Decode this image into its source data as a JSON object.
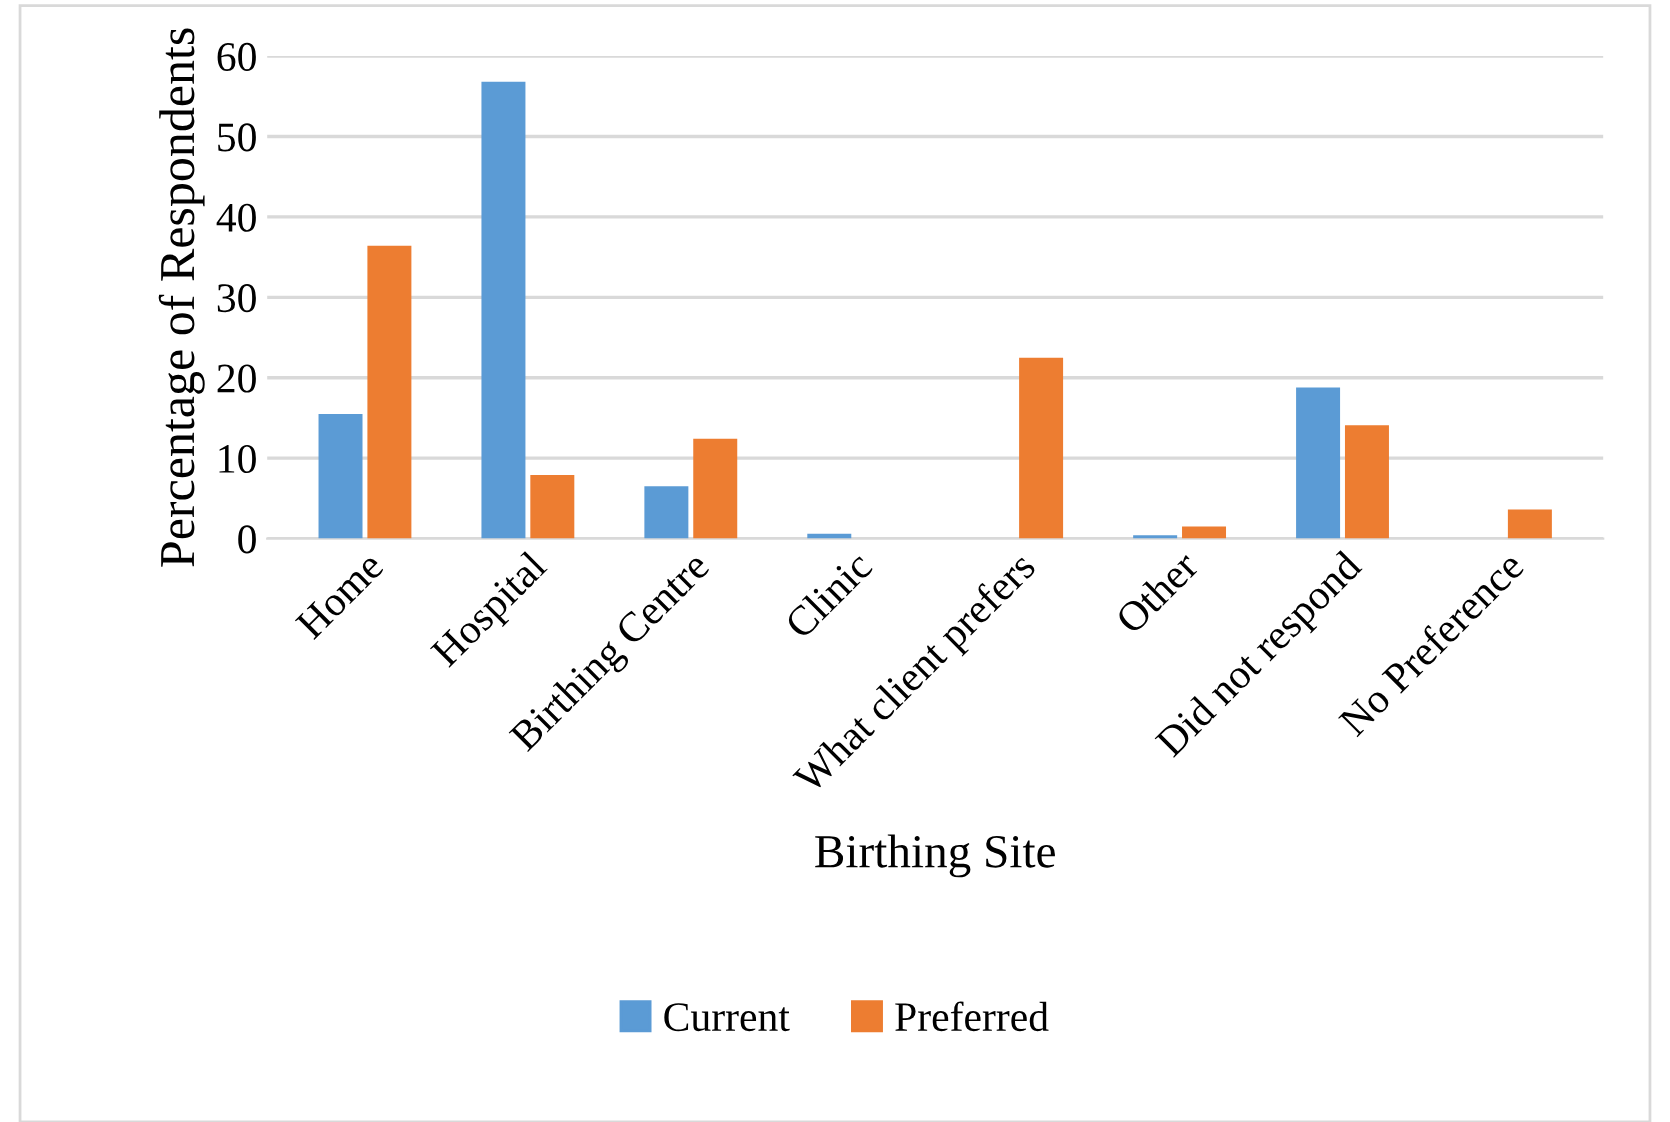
{
  "chart_data": {
    "type": "bar",
    "xlabel": "Birthing Site",
    "ylabel": "Percentage of Respondents",
    "categories": [
      "Home",
      "Hospital",
      "Birthing Centre",
      "Clinic",
      "What client prefers",
      "Other",
      "Did not respond",
      "No Preference"
    ],
    "series": [
      {
        "name": "Current",
        "color": "#5b9bd5",
        "values": [
          15.5,
          56.8,
          6.5,
          0.6,
          0,
          0.4,
          18.8,
          0
        ]
      },
      {
        "name": "Preferred",
        "color": "#ed7d31",
        "values": [
          36.4,
          7.9,
          12.4,
          0,
          22.5,
          1.5,
          14.1,
          3.6
        ]
      }
    ],
    "ylim": [
      0,
      60
    ],
    "yticks": [
      0,
      10,
      20,
      30,
      40,
      50,
      60
    ],
    "grid": "y",
    "legend": "bottom"
  }
}
